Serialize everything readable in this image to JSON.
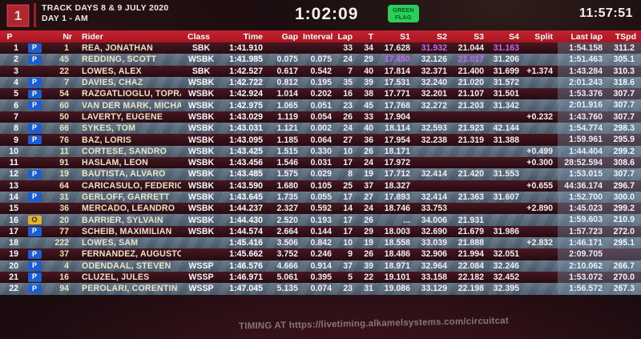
{
  "header": {
    "event_number": "1",
    "title_line1": "TRACK DAYS 8 & 9 JULY 2020",
    "title_line2": "DAY 1 - AM",
    "session_time": "1:02:09",
    "flag_line1": "GREEN",
    "flag_line2": "FLAG",
    "clock": "11:57:51"
  },
  "colors": {
    "header_red": "#c42230",
    "badge_blue": "#1b5ed4",
    "badge_yellow": "#dfb32c",
    "best_sector_purple": "#c868ee",
    "green_flag": "#28cf5a"
  },
  "table": {
    "columns": [
      "P",
      "Nr",
      "Rider",
      "Class",
      "Time",
      "Gap",
      "Interval",
      "Lap",
      "T",
      "S1",
      "S2",
      "S3",
      "S4",
      "Split",
      "Last lap",
      "TSpd"
    ],
    "rows": [
      {
        "p": "1",
        "b": "P",
        "nr": "1",
        "name": "REA, JONATHAN",
        "cls": "SBK",
        "time": "1:41.910",
        "gap": "",
        "itv": "",
        "lap": "33",
        "t": "34",
        "s1": "17.628",
        "s2": "31.932",
        "s3": "21.044",
        "s4": "31.163",
        "sp": "",
        "last": "1:54.158",
        "tspd": "311.2",
        "best": [
          "s2",
          "s4"
        ]
      },
      {
        "p": "2",
        "b": "P",
        "nr": "45",
        "name": "REDDING, SCOTT",
        "cls": "WSBK",
        "time": "1:41.985",
        "gap": "0.075",
        "itv": "0.075",
        "lap": "24",
        "t": "29",
        "s1": "17.450",
        "s2": "32.126",
        "s3": "21.017",
        "s4": "31.206",
        "sp": "",
        "last": "1:51.463",
        "tspd": "305.1",
        "best": [
          "s1",
          "s3"
        ]
      },
      {
        "p": "3",
        "b": "",
        "nr": "22",
        "name": "LOWES, ALEX",
        "cls": "SBK",
        "time": "1:42.527",
        "gap": "0.617",
        "itv": "0.542",
        "lap": "7",
        "t": "40",
        "s1": "17.814",
        "s2": "32.371",
        "s3": "21.400",
        "s4": "31.699",
        "sp": "+1.374",
        "last": "1:43.284",
        "tspd": "310.3",
        "best": []
      },
      {
        "p": "4",
        "b": "P",
        "nr": "7",
        "name": "DAVIES, CHAZ",
        "cls": "WSBK",
        "time": "1:42.722",
        "gap": "0.812",
        "itv": "0.195",
        "lap": "35",
        "t": "39",
        "s1": "17.531",
        "s2": "32.240",
        "s3": "21.020",
        "s4": "31.572",
        "sp": "",
        "last": "2:01.243",
        "tspd": "318.6",
        "best": []
      },
      {
        "p": "5",
        "b": "P",
        "nr": "54",
        "name": "RAZGATLIOGLU, TOPRAK",
        "cls": "WSBK",
        "time": "1:42.924",
        "gap": "1.014",
        "itv": "0.202",
        "lap": "16",
        "t": "38",
        "s1": "17.771",
        "s2": "32.201",
        "s3": "21.107",
        "s4": "31.501",
        "sp": "",
        "last": "1:53.376",
        "tspd": "307.7",
        "best": []
      },
      {
        "p": "6",
        "b": "P",
        "nr": "60",
        "name": "VAN DER MARK, MICHAEL",
        "cls": "WSBK",
        "time": "1:42.975",
        "gap": "1.065",
        "itv": "0.051",
        "lap": "23",
        "t": "45",
        "s1": "17.768",
        "s2": "32.272",
        "s3": "21.203",
        "s4": "31.342",
        "sp": "",
        "last": "2:01.916",
        "tspd": "307.7",
        "best": []
      },
      {
        "p": "7",
        "b": "",
        "nr": "50",
        "name": "LAVERTY, EUGENE",
        "cls": "WSBK",
        "time": "1:43.029",
        "gap": "1.119",
        "itv": "0.054",
        "lap": "26",
        "t": "33",
        "s1": "17.904",
        "s2": "",
        "s3": "",
        "s4": "",
        "sp": "+0.232",
        "last": "1:43.760",
        "tspd": "307.7",
        "best": []
      },
      {
        "p": "8",
        "b": "P",
        "nr": "66",
        "name": "SYKES, TOM",
        "cls": "WSBK",
        "time": "1:43.031",
        "gap": "1.121",
        "itv": "0.002",
        "lap": "24",
        "t": "40",
        "s1": "18.114",
        "s2": "32.593",
        "s3": "21.923",
        "s4": "42.144",
        "sp": "",
        "last": "1:54.774",
        "tspd": "298.3",
        "best": []
      },
      {
        "p": "9",
        "b": "P",
        "nr": "76",
        "name": "BAZ, LORIS",
        "cls": "WSBK",
        "time": "1:43.095",
        "gap": "1.185",
        "itv": "0.064",
        "lap": "27",
        "t": "36",
        "s1": "17.954",
        "s2": "32.238",
        "s3": "21.319",
        "s4": "31.388",
        "sp": "",
        "last": "1:59.961",
        "tspd": "295.9",
        "best": []
      },
      {
        "p": "10",
        "b": "",
        "nr": "11",
        "name": "CORTESE, SANDRO",
        "cls": "WSBK",
        "time": "1:43.425",
        "gap": "1.515",
        "itv": "0.330",
        "lap": "10",
        "t": "26",
        "s1": "18.171",
        "s2": "",
        "s3": "",
        "s4": "",
        "sp": "+0.499",
        "last": "1:44.404",
        "tspd": "299.2",
        "best": []
      },
      {
        "p": "11",
        "b": "",
        "nr": "91",
        "name": "HASLAM, LEON",
        "cls": "WSBK",
        "time": "1:43.456",
        "gap": "1.546",
        "itv": "0.031",
        "lap": "17",
        "t": "24",
        "s1": "17.972",
        "s2": "",
        "s3": "",
        "s4": "",
        "sp": "+0.300",
        "last": "28:52.594",
        "tspd": "308.6",
        "best": []
      },
      {
        "p": "12",
        "b": "P",
        "nr": "19",
        "name": "BAUTISTA, ALVARO",
        "cls": "WSBK",
        "time": "1:43.485",
        "gap": "1.575",
        "itv": "0.029",
        "lap": "8",
        "t": "19",
        "s1": "17.712",
        "s2": "32.414",
        "s3": "21.420",
        "s4": "31.553",
        "sp": "",
        "last": "1:53.015",
        "tspd": "307.7",
        "best": []
      },
      {
        "p": "13",
        "b": "",
        "nr": "64",
        "name": "CARICASULO, FEDERICO",
        "cls": "WSBK",
        "time": "1:43.590",
        "gap": "1.680",
        "itv": "0.105",
        "lap": "25",
        "t": "37",
        "s1": "18.327",
        "s2": "",
        "s3": "",
        "s4": "",
        "sp": "+0.655",
        "last": "44:36.174",
        "tspd": "296.7",
        "best": []
      },
      {
        "p": "14",
        "b": "P",
        "nr": "31",
        "name": "GERLOFF, GARRETT",
        "cls": "WSBK",
        "time": "1:43.645",
        "gap": "1.735",
        "itv": "0.055",
        "lap": "17",
        "t": "27",
        "s1": "17.893",
        "s2": "32.414",
        "s3": "21.363",
        "s4": "31.607",
        "sp": "",
        "last": "1:52.700",
        "tspd": "300.0",
        "best": []
      },
      {
        "p": "15",
        "b": "",
        "nr": "36",
        "name": "MERCADO, LEANDRO",
        "cls": "WSBK",
        "time": "1:44.237",
        "gap": "2.327",
        "itv": "0.592",
        "lap": "14",
        "t": "24",
        "s1": "18.746",
        "s2": "33.753",
        "s3": "",
        "s4": "",
        "sp": "+2.890",
        "last": "1:45.023",
        "tspd": "299.2",
        "best": []
      },
      {
        "p": "16",
        "b": "O",
        "nr": "20",
        "name": "BARRIER, SYLVAIN",
        "cls": "WSBK",
        "time": "1:44.430",
        "gap": "2.520",
        "itv": "0.193",
        "lap": "17",
        "t": "26",
        "s1": "...",
        "s2": "34.006",
        "s3": "21.931",
        "s4": "",
        "sp": "",
        "last": "1:59.603",
        "tspd": "210.9",
        "best": []
      },
      {
        "p": "17",
        "b": "P",
        "nr": "77",
        "name": "SCHEIB, MAXIMILIAN",
        "cls": "WSBK",
        "time": "1:44.574",
        "gap": "2.664",
        "itv": "0.144",
        "lap": "17",
        "t": "29",
        "s1": "18.003",
        "s2": "32.690",
        "s3": "21.679",
        "s4": "31.986",
        "sp": "",
        "last": "1:57.723",
        "tspd": "272.0",
        "best": []
      },
      {
        "p": "18",
        "b": "",
        "nr": "222",
        "name": "LOWES, SAM",
        "cls": "",
        "time": "1:45.416",
        "gap": "3.506",
        "itv": "0.842",
        "lap": "10",
        "t": "19",
        "s1": "18.558",
        "s2": "33.039",
        "s3": "21.888",
        "s4": "",
        "sp": "+2.832",
        "last": "1:46.171",
        "tspd": "295.1",
        "best": []
      },
      {
        "p": "19",
        "b": "P",
        "nr": "37",
        "name": "FERNANDEZ, AUGUSTO",
        "cls": "",
        "time": "1:45.662",
        "gap": "3.752",
        "itv": "0.246",
        "lap": "9",
        "t": "26",
        "s1": "18.486",
        "s2": "32.906",
        "s3": "21.994",
        "s4": "32.051",
        "sp": "",
        "last": "2:09.705",
        "tspd": "",
        "best": []
      },
      {
        "p": "20",
        "b": "P",
        "nr": "4",
        "name": "ODENDAAL, STEVEN",
        "cls": "WSSP",
        "time": "1:46.576",
        "gap": "4.666",
        "itv": "0.914",
        "lap": "37",
        "t": "39",
        "s1": "18.971",
        "s2": "32.964",
        "s3": "22.084",
        "s4": "32.246",
        "sp": "",
        "last": "2:10.062",
        "tspd": "266.7",
        "best": []
      },
      {
        "p": "21",
        "b": "P",
        "nr": "16",
        "name": "CLUZEL, JULES",
        "cls": "WSSP",
        "time": "1:46.971",
        "gap": "5.061",
        "itv": "0.395",
        "lap": "5",
        "t": "22",
        "s1": "19.101",
        "s2": "33.158",
        "s3": "22.182",
        "s4": "32.452",
        "sp": "",
        "last": "1:53.072",
        "tspd": "270.0",
        "best": []
      },
      {
        "p": "22",
        "b": "P",
        "nr": "94",
        "name": "PEROLARI, CORENTIN",
        "cls": "WSSP",
        "time": "1:47.045",
        "gap": "5.135",
        "itv": "0.074",
        "lap": "23",
        "t": "31",
        "s1": "19.086",
        "s2": "33.129",
        "s3": "22.198",
        "s4": "32.395",
        "sp": "",
        "last": "1:56.572",
        "tspd": "267.3",
        "best": []
      }
    ]
  },
  "footer": {
    "ticker": "TIMING AT https://livetiming.alkamelsystems.com/circuitcat"
  }
}
